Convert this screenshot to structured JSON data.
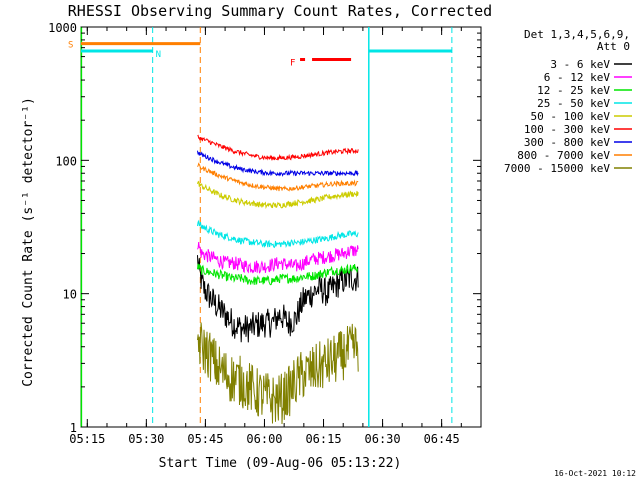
{
  "chart_data": {
    "type": "line",
    "title": "RHESSI Observing Summary Count Rates, Corrected",
    "xlabel": "Start Time (09-Aug-06 05:13:22)",
    "ylabel": "Corrected Count Rate (s⁻¹ detector⁻¹)",
    "yscale": "log",
    "ylim": [
      1,
      1000
    ],
    "xlim": [
      313.4,
      415
    ],
    "x_unit": "minutes after 00:00 UT",
    "x_ticks": [
      {
        "value": 315,
        "label": "05:15"
      },
      {
        "value": 330,
        "label": "05:30"
      },
      {
        "value": 345,
        "label": "05:45"
      },
      {
        "value": 360,
        "label": "06:00"
      },
      {
        "value": 375,
        "label": "06:15"
      },
      {
        "value": 390,
        "label": "06:30"
      },
      {
        "value": 405,
        "label": "06:45"
      }
    ],
    "y_ticks": [
      {
        "value": 1,
        "label": "1"
      },
      {
        "value": 10,
        "label": "10"
      },
      {
        "value": 100,
        "label": "100"
      },
      {
        "value": 1000,
        "label": "1000"
      }
    ],
    "legend": {
      "position": "top-right",
      "header": [
        "Det 1,3,4,5,6,9,",
        "Att 0"
      ],
      "entries": [
        {
          "label": "3 - 6 keV",
          "color": "#000000"
        },
        {
          "label": "6 - 12 keV",
          "color": "#ff00ff"
        },
        {
          "label": "12 - 25 keV",
          "color": "#00e600"
        },
        {
          "label": "25 - 50 keV",
          "color": "#00e6e6"
        },
        {
          "label": "50 - 100 keV",
          "color": "#cccc00"
        },
        {
          "label": "100 - 300 keV",
          "color": "#ff0000"
        },
        {
          "label": "300 - 800 keV",
          "color": "#0000e6"
        },
        {
          "label": "800 - 7000 keV",
          "color": "#ff7f00"
        },
        {
          "label": "7000 - 15000 keV",
          "color": "#808000"
        }
      ]
    },
    "series": [
      {
        "name": "3 - 6 keV",
        "color": "#000000",
        "x": [
          343.0,
          343.5,
          344.5,
          346,
          348,
          350,
          352,
          354,
          356,
          358,
          360,
          362,
          364,
          366,
          368,
          370,
          372,
          374,
          376,
          378,
          380,
          382,
          383.9
        ],
        "y": [
          18,
          14,
          11,
          9.5,
          8,
          7,
          6,
          5.5,
          5.5,
          5.8,
          6,
          6,
          7,
          6,
          6.5,
          9,
          10,
          11,
          10,
          11.5,
          12.5,
          13,
          13
        ]
      },
      {
        "name": "6 - 12 keV",
        "color": "#ff00ff",
        "x": [
          343.0,
          344,
          346,
          348,
          350,
          352,
          354,
          356,
          358,
          360,
          362,
          364,
          366,
          368,
          370,
          372,
          374,
          376,
          378,
          380,
          382,
          383.9
        ],
        "y": [
          24,
          20,
          19,
          18,
          17,
          17,
          16.5,
          16,
          16,
          16,
          16.5,
          17,
          16.5,
          16,
          17,
          18,
          18.5,
          19,
          19.5,
          20,
          21,
          21
        ]
      },
      {
        "name": "12 - 25 keV",
        "color": "#00e600",
        "x": [
          343.0,
          344,
          346,
          348,
          350,
          352,
          354,
          356,
          358,
          360,
          362,
          364,
          366,
          368,
          370,
          372,
          374,
          376,
          378,
          380,
          382,
          383.9
        ],
        "y": [
          16,
          15,
          14.5,
          14,
          13.5,
          13,
          13,
          12.5,
          12.5,
          12.5,
          12.5,
          13,
          13,
          13,
          13.5,
          13.5,
          14,
          14.5,
          15,
          15,
          15.5,
          15.5
        ]
      },
      {
        "name": "25 - 50 keV",
        "color": "#00e6e6",
        "x": [
          343.0,
          344,
          346,
          348,
          350,
          352,
          354,
          356,
          358,
          360,
          362,
          364,
          366,
          368,
          370,
          372,
          374,
          376,
          378,
          380,
          382,
          383.9
        ],
        "y": [
          34,
          32,
          30,
          28,
          27,
          26,
          25,
          24.5,
          24,
          23.5,
          23.5,
          23.5,
          24,
          24,
          24.5,
          25,
          25.5,
          26,
          27,
          27.5,
          28,
          28
        ]
      },
      {
        "name": "50 - 100 keV",
        "color": "#cccc00",
        "x": [
          343.0,
          344,
          346,
          348,
          350,
          352,
          354,
          356,
          358,
          360,
          362,
          364,
          366,
          368,
          370,
          372,
          374,
          376,
          378,
          380,
          382,
          383.9
        ],
        "y": [
          68,
          64,
          60,
          56,
          53,
          51,
          49,
          48,
          47,
          46,
          46,
          46,
          47,
          48,
          49,
          50,
          51,
          53,
          54,
          55,
          56,
          56
        ]
      },
      {
        "name": "100 - 300 keV",
        "color": "#ff0000",
        "x": [
          343.0,
          344,
          346,
          348,
          350,
          352,
          354,
          356,
          358,
          360,
          362,
          364,
          366,
          368,
          370,
          372,
          374,
          376,
          378,
          380,
          382,
          383.9
        ],
        "y": [
          150,
          145,
          138,
          130,
          124,
          118,
          114,
          110,
          107,
          105,
          104,
          104,
          105,
          106,
          108,
          110,
          112,
          114,
          116,
          117,
          118,
          118
        ]
      },
      {
        "name": "300 - 800 keV",
        "color": "#0000e6",
        "x": [
          343.0,
          344,
          346,
          348,
          350,
          352,
          354,
          356,
          358,
          360,
          362,
          364,
          366,
          368,
          370,
          372,
          374,
          376,
          378,
          380,
          382,
          383.9
        ],
        "y": [
          115,
          110,
          104,
          98,
          93,
          89,
          86,
          84,
          82,
          81,
          80,
          80,
          80,
          80,
          80,
          80,
          80,
          80,
          80,
          80,
          80,
          80
        ]
      },
      {
        "name": "800 - 7000 keV",
        "color": "#ff7f00",
        "x": [
          343.0,
          344,
          346,
          348,
          350,
          352,
          354,
          356,
          358,
          360,
          362,
          364,
          366,
          368,
          370,
          372,
          374,
          376,
          378,
          380,
          382,
          383.9
        ],
        "y": [
          92,
          88,
          83,
          78,
          74,
          71,
          68,
          66,
          64,
          63,
          62,
          61,
          61,
          62,
          63,
          64,
          65,
          66,
          67,
          67,
          67,
          67
        ]
      },
      {
        "name": "7000 - 15000 keV",
        "color": "#808000",
        "x": [
          343.0,
          344,
          346,
          348,
          350,
          352,
          354,
          356,
          358,
          360,
          362,
          364,
          366,
          368,
          370,
          372,
          374,
          376,
          378,
          380,
          382,
          383.9
        ],
        "y": [
          4.5,
          4,
          3.5,
          2.8,
          2.5,
          2.3,
          2.2,
          2.0,
          1.8,
          1.7,
          1.6,
          1.6,
          1.8,
          2.2,
          2.5,
          2.6,
          2.8,
          3,
          3.2,
          3.5,
          3.8,
          4
        ]
      }
    ],
    "state_bars": [
      {
        "label": "S",
        "color": "#ff7f00",
        "x_start": 313.4,
        "x_end": 343.7,
        "y": 750
      },
      {
        "label": "N",
        "color": "#00e6e6",
        "x_start": 313.4,
        "x_end": 331.6,
        "y": 660
      },
      {
        "label": "",
        "color": "#00e6e6",
        "x_start": 386.5,
        "x_end": 407.6,
        "y": 660
      },
      {
        "label": "F",
        "color": "#ff0000",
        "x_start": 366.5,
        "x_end": 382.0,
        "y": 570
      }
    ],
    "vertical_markers": [
      {
        "x": 313.5,
        "color": "#00e600",
        "style": "solid"
      },
      {
        "x": 331.6,
        "color": "#00e6e6",
        "style": "dashed"
      },
      {
        "x": 343.7,
        "color": "#ff7f00",
        "style": "dashed"
      },
      {
        "x": 386.5,
        "color": "#00e6e6",
        "style": "solid"
      },
      {
        "x": 407.6,
        "color": "#00e6e6",
        "style": "dashed"
      }
    ],
    "footer_date": "16-Oct-2021 10:12"
  }
}
